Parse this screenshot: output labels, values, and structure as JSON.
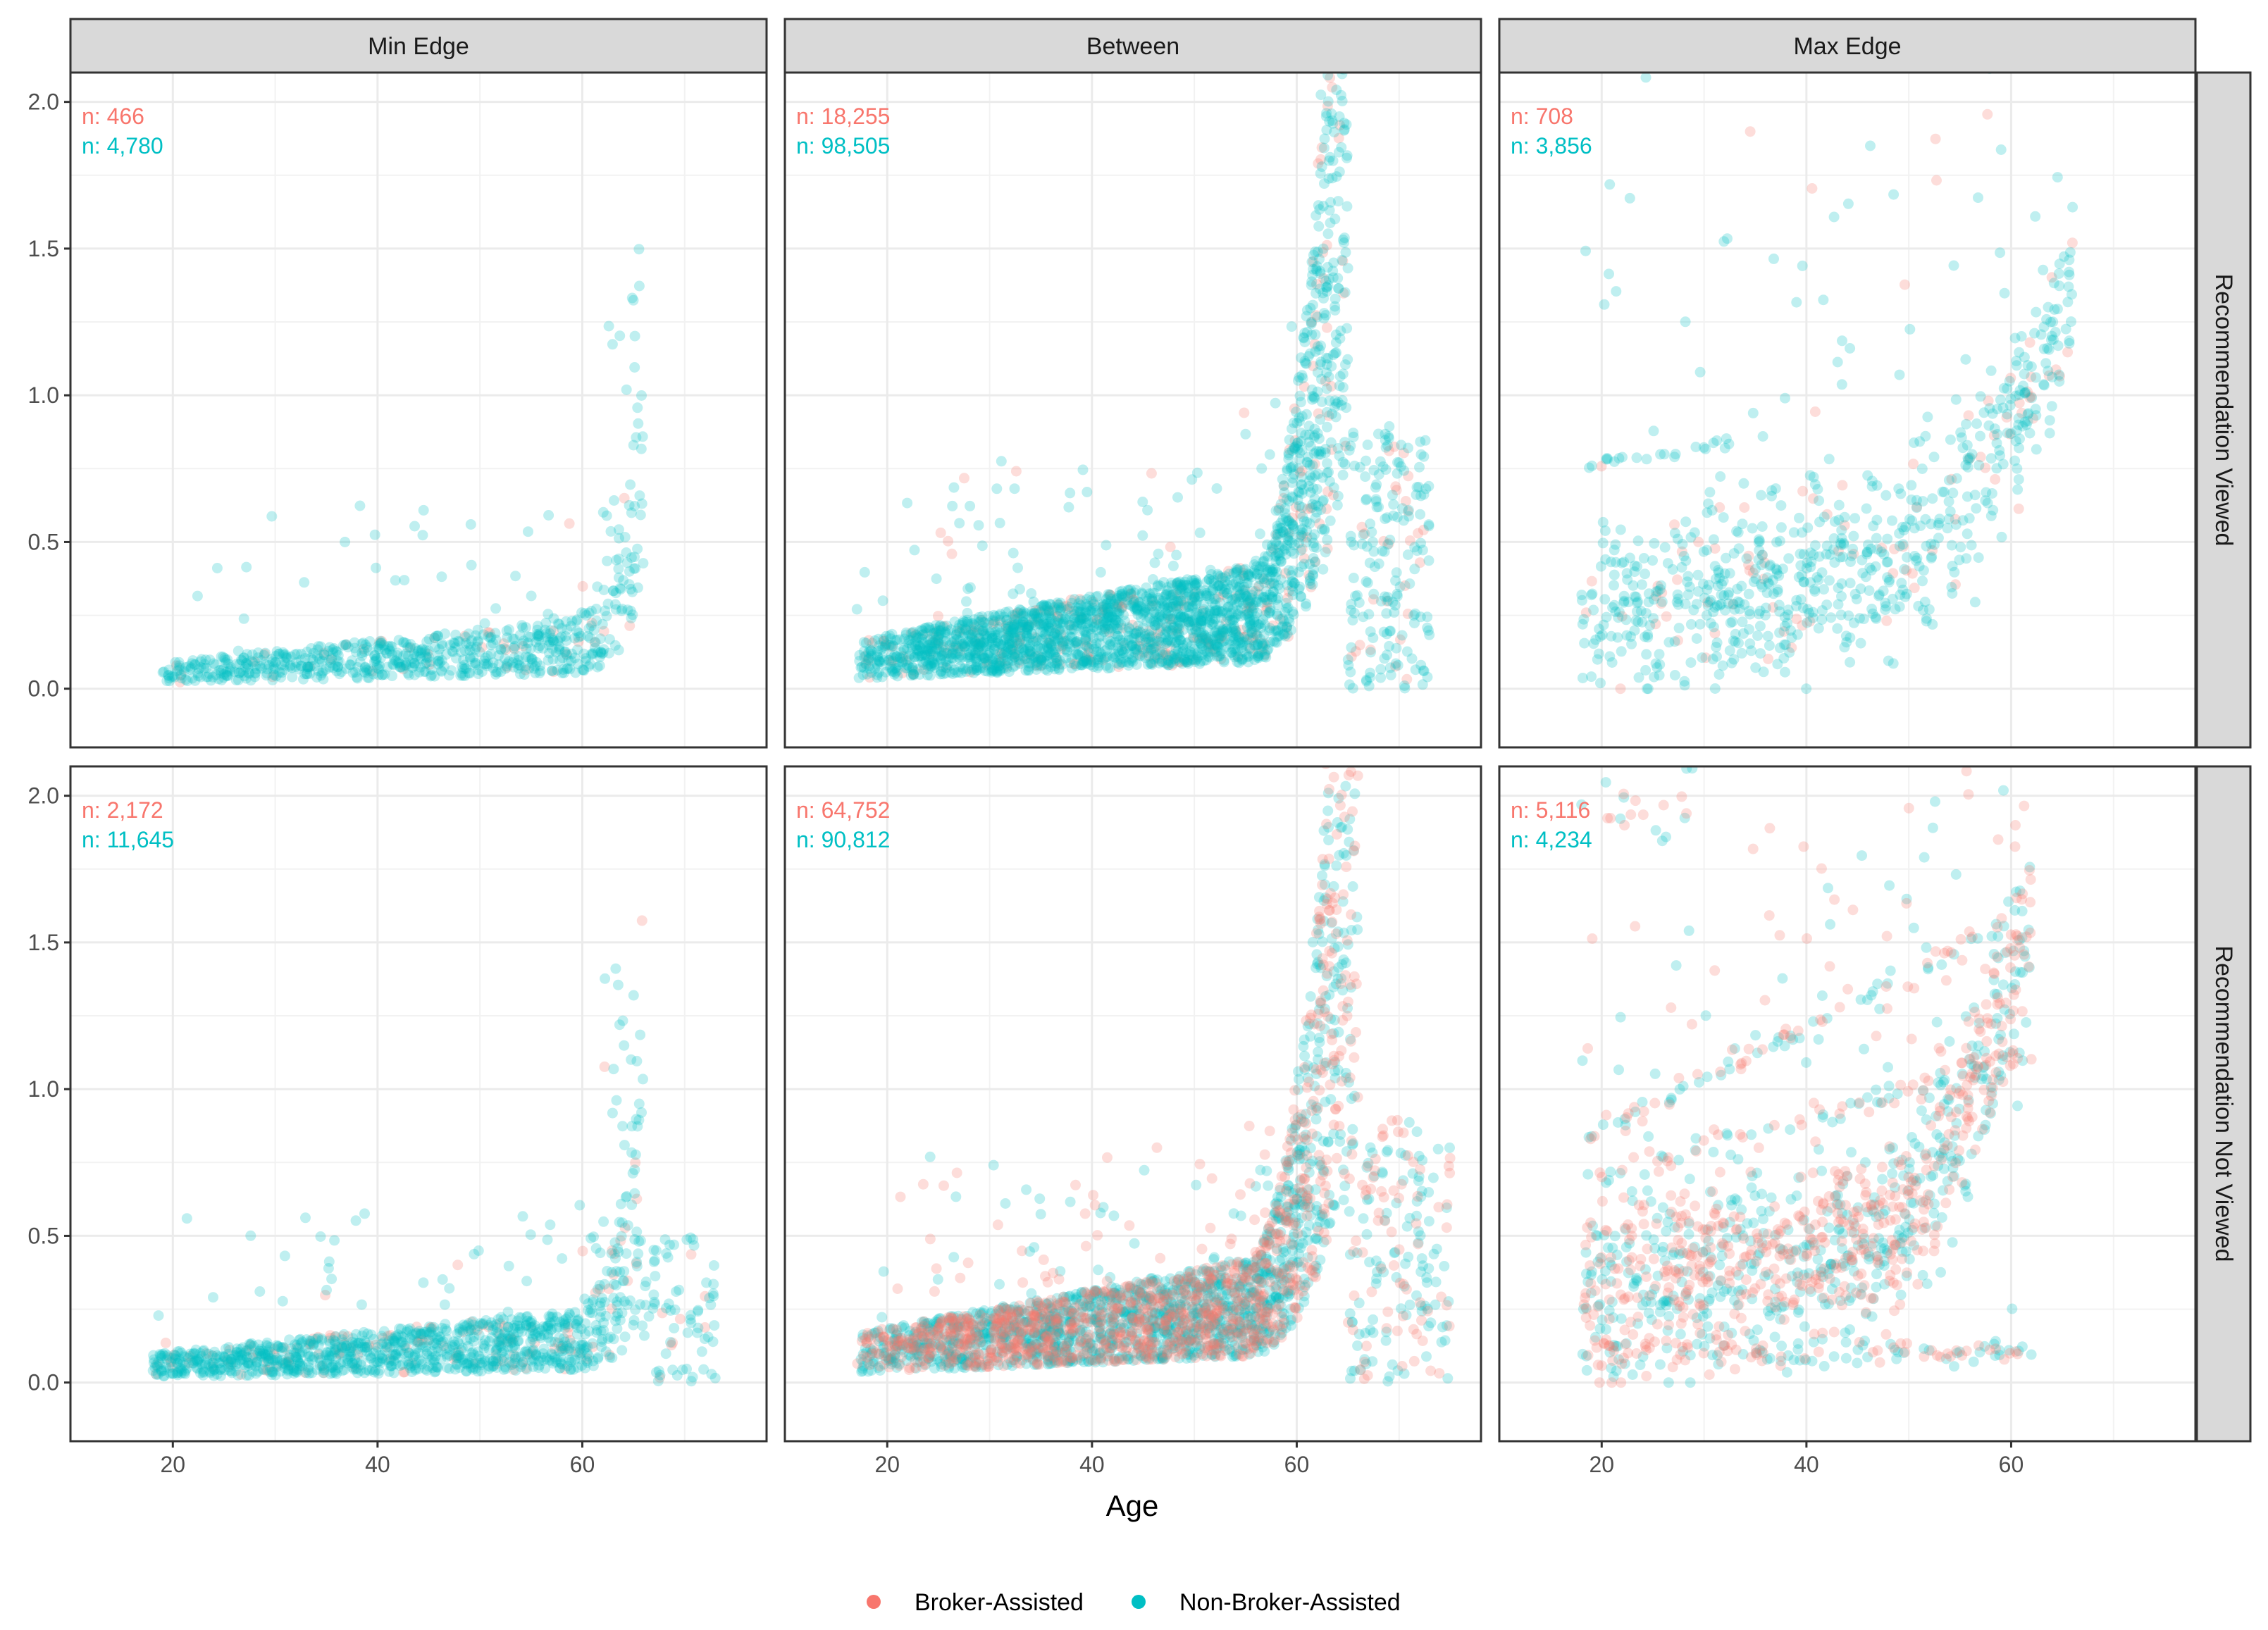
{
  "chart_data": {
    "type": "scatter",
    "xlabel": "Age",
    "ylabel": "",
    "xlim": [
      10,
      78
    ],
    "ylim": [
      -0.2,
      2.1
    ],
    "x_ticks": [
      20,
      40,
      60
    ],
    "y_ticks": [
      0.0,
      0.5,
      1.0,
      1.5,
      2.0
    ],
    "x_tick_labels": [
      "20",
      "40",
      "60"
    ],
    "y_tick_labels": [
      "0.0",
      "0.5",
      "1.0",
      "1.5",
      "2.0"
    ],
    "column_facets": [
      "Min Edge",
      "Between",
      "Max Edge"
    ],
    "row_facets": [
      "Recommendation Viewed",
      "Recommendation Not Viewed"
    ],
    "series": [
      {
        "name": "Broker-Assisted",
        "color": "#F8766D"
      },
      {
        "name": "Non-Broker-Assisted",
        "color": "#00BFC4"
      }
    ],
    "legend": {
      "position": "bottom",
      "labels": [
        "Broker-Assisted",
        "Non-Broker-Assisted"
      ]
    },
    "point_alpha": 0.25,
    "panels": [
      {
        "row": 0,
        "col": 0,
        "counts": [
          "n: 466",
          "n: 4,780"
        ]
      },
      {
        "row": 0,
        "col": 1,
        "counts": [
          "n: 18,255",
          "n: 98,505"
        ]
      },
      {
        "row": 0,
        "col": 2,
        "counts": [
          "n: 708",
          "n: 3,856"
        ]
      },
      {
        "row": 1,
        "col": 0,
        "counts": [
          "n: 2,172",
          "n: 11,645"
        ]
      },
      {
        "row": 1,
        "col": 1,
        "counts": [
          "n: 64,752",
          "n: 90,812"
        ]
      },
      {
        "row": 1,
        "col": 2,
        "counts": [
          "n: 5,116",
          "n: 4,234"
        ]
      }
    ]
  }
}
